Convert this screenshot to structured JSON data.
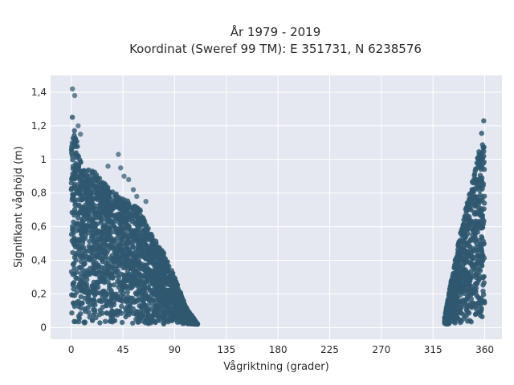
{
  "chart_data": {
    "type": "scatter",
    "title": "År 1979 - 2019",
    "subtitle": "Koordinat (Sweref 99 TM): E 351731, N 6238576",
    "xlabel": "Vågriktning (grader)",
    "ylabel": "Signifikant våghöjd (m)",
    "xlim": [
      -18,
      375
    ],
    "ylim": [
      -0.07,
      1.5
    ],
    "x_ticks": [
      0,
      45,
      90,
      135,
      180,
      225,
      270,
      315,
      360
    ],
    "x_tick_labels": [
      "0",
      "45",
      "90",
      "135",
      "180",
      "225",
      "270",
      "315",
      "360"
    ],
    "y_ticks": [
      0,
      0.2,
      0.4,
      0.6,
      0.8,
      1.0,
      1.2,
      1.4
    ],
    "y_tick_labels": [
      "0",
      "0,2",
      "0,4",
      "0,6",
      "0,8",
      "1",
      "1,2",
      "1,4"
    ],
    "grid": true,
    "marker_color": "#2f5870",
    "plot_background": "#e5e8f0",
    "envelope": [
      {
        "name": "",
        "points": [
          [
            0,
            1.45
          ],
          [
            2,
            1.3
          ],
          [
            5,
            1.1
          ],
          [
            10,
            0.95
          ],
          [
            20,
            0.93
          ],
          [
            30,
            0.85
          ],
          [
            40,
            0.8
          ],
          [
            50,
            0.75
          ],
          [
            60,
            0.7
          ],
          [
            70,
            0.55
          ],
          [
            80,
            0.45
          ],
          [
            90,
            0.3
          ],
          [
            100,
            0.12
          ],
          [
            110,
            0.02
          ]
        ]
      },
      {
        "name": "",
        "points": [
          [
            325,
            0.05
          ],
          [
            330,
            0.25
          ],
          [
            340,
            0.6
          ],
          [
            350,
            0.9
          ],
          [
            355,
            1.05
          ],
          [
            358,
            1.2
          ],
          [
            360,
            1.28
          ]
        ]
      }
    ],
    "outliers": [
      [
        41,
        1.03
      ],
      [
        43,
        0.95
      ],
      [
        50,
        0.88
      ],
      [
        57,
        0.78
      ],
      [
        65,
        0.75
      ],
      [
        32,
        0.96
      ],
      [
        8,
        1.15
      ],
      [
        6,
        1.2
      ],
      [
        3,
        1.38
      ],
      [
        1,
        1.42
      ],
      [
        46,
        0.9
      ],
      [
        54,
        0.82
      ]
    ]
  }
}
